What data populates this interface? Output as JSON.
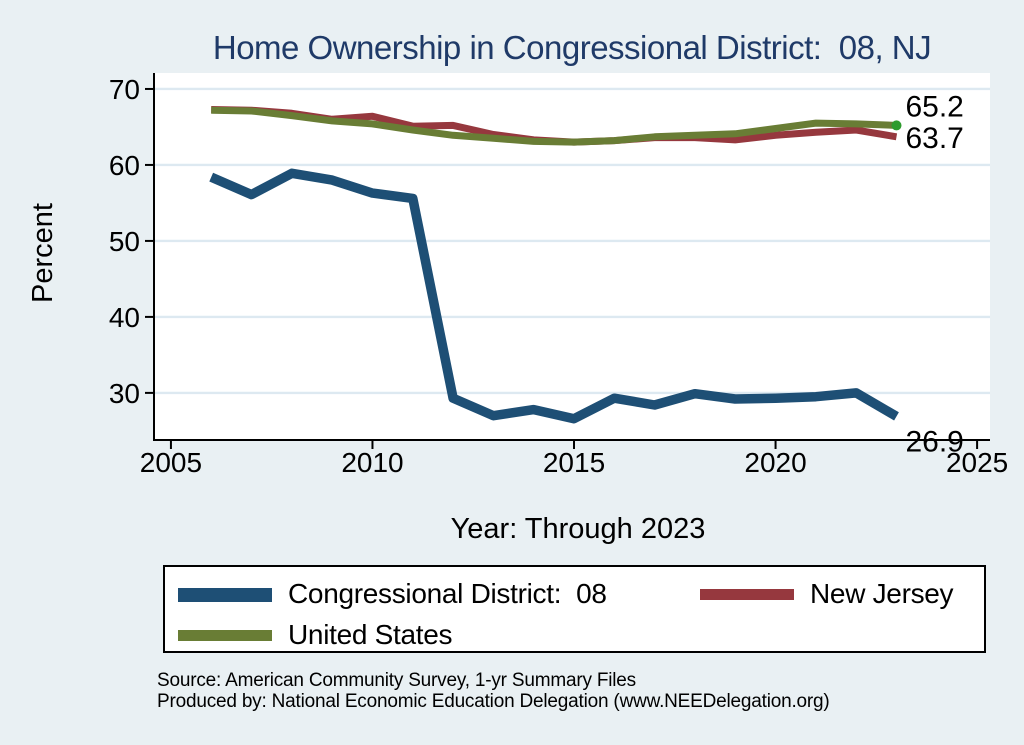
{
  "title": "Home Ownership in Congressional District:  08, NJ",
  "xlabel": "Year: Through 2023",
  "ylabel": "Percent",
  "source": {
    "line1": "Source: American Community Survey, 1-yr Summary Files",
    "line2": "Produced by: National Economic Education Delegation (www.NEEDelegation.org)"
  },
  "colors": {
    "background": "#e9f0f3",
    "plot_background": "#ffffff",
    "gridline": "#dde9f1",
    "axis": "#000000",
    "title_text": "#1f3a68",
    "district_line": "#1e4f75",
    "new_jersey_line": "#96383e",
    "united_states_line": "#697d35",
    "end_marker": "#2e9b2e"
  },
  "chart_data": {
    "type": "line",
    "title": "Home Ownership in Congressional District:  08, NJ",
    "xlabel": "Year: Through 2023",
    "ylabel": "Percent",
    "x": [
      2006,
      2007,
      2008,
      2009,
      2010,
      2011,
      2012,
      2013,
      2014,
      2015,
      2016,
      2017,
      2018,
      2019,
      2020,
      2021,
      2022,
      2023
    ],
    "series": [
      {
        "name": "Congressional District:  08",
        "color": "#1e4f75",
        "line_width": 9.5,
        "values": [
          58.4,
          56.1,
          58.9,
          58.0,
          56.3,
          55.6,
          29.3,
          27.0,
          27.8,
          26.6,
          29.3,
          28.4,
          29.9,
          29.2,
          29.3,
          29.5,
          30.0,
          26.9
        ],
        "end_label": "26.9"
      },
      {
        "name": "New Jersey",
        "color": "#96383e",
        "line_width": 7,
        "values": [
          67.3,
          67.2,
          66.8,
          66.0,
          66.4,
          65.1,
          65.2,
          64.0,
          63.3,
          63.0,
          63.2,
          63.6,
          63.6,
          63.3,
          63.9,
          64.3,
          64.6,
          63.7
        ],
        "end_label": "63.7"
      },
      {
        "name": "United States",
        "color": "#697d35",
        "line_width": 7,
        "values": [
          67.2,
          67.1,
          66.5,
          65.8,
          65.4,
          64.6,
          63.9,
          63.5,
          63.1,
          63.0,
          63.2,
          63.7,
          63.9,
          64.1,
          64.8,
          65.5,
          65.4,
          65.2
        ],
        "end_label": "65.2",
        "end_marker": true,
        "end_marker_color": "#2e9b2e"
      }
    ],
    "xticks": [
      2005,
      2010,
      2015,
      2020,
      2025
    ],
    "yticks": [
      30,
      40,
      50,
      60,
      70
    ],
    "xlim": [
      2004.58,
      2025.32
    ],
    "ylim": [
      23.8,
      72.1
    ],
    "grid": "horizontal",
    "legend_position": "bottom"
  }
}
